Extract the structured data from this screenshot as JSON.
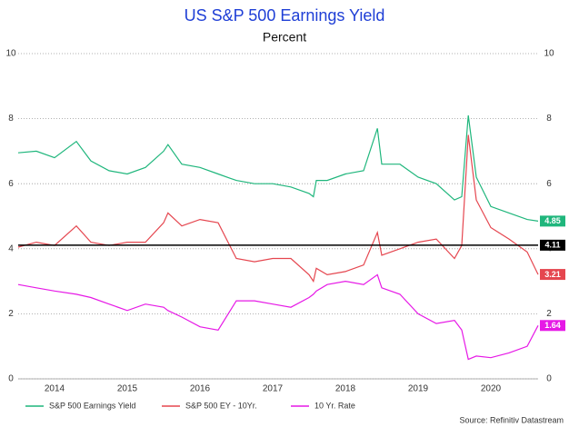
{
  "chart_data": {
    "type": "line",
    "title": "US S&P 500 Earnings Yield",
    "subtitle": "Percent",
    "source": "Source: Refinitiv Datastream",
    "x": [
      2014.0,
      2014.25,
      2014.5,
      2014.8,
      2015.0,
      2015.25,
      2015.5,
      2015.75,
      2016.0,
      2016.06,
      2016.25,
      2016.5,
      2016.75,
      2017.0,
      2017.25,
      2017.5,
      2017.75,
      2018.0,
      2018.06,
      2018.1,
      2018.25,
      2018.5,
      2018.75,
      2018.94,
      2019.0,
      2019.25,
      2019.5,
      2019.75,
      2020.0,
      2020.1,
      2020.19,
      2020.3,
      2020.5,
      2020.75,
      2021.0,
      2021.15
    ],
    "series": [
      {
        "name": "S&P 500 Earnings Yield",
        "color": "#1fb67c",
        "values": [
          6.95,
          7.0,
          6.8,
          7.3,
          6.7,
          6.4,
          6.3,
          6.5,
          7.0,
          7.2,
          6.6,
          6.5,
          6.3,
          6.1,
          6.0,
          6.0,
          5.9,
          5.7,
          5.6,
          6.1,
          6.1,
          6.3,
          6.4,
          7.7,
          6.6,
          6.6,
          6.2,
          6.0,
          5.5,
          5.6,
          8.1,
          6.2,
          5.3,
          5.1,
          4.9,
          4.85
        ]
      },
      {
        "name": "S&P 500 EY - 10Yr.",
        "color": "#e5464f",
        "values": [
          4.05,
          4.2,
          4.1,
          4.7,
          4.2,
          4.1,
          4.2,
          4.2,
          4.8,
          5.1,
          4.7,
          4.9,
          4.8,
          3.7,
          3.6,
          3.7,
          3.7,
          3.2,
          3.0,
          3.4,
          3.2,
          3.3,
          3.5,
          4.5,
          3.8,
          4.0,
          4.2,
          4.3,
          3.7,
          4.1,
          7.5,
          5.5,
          4.65,
          4.3,
          3.9,
          3.21
        ]
      },
      {
        "name": "10 Yr. Rate",
        "color": "#e619e6",
        "values": [
          2.9,
          2.8,
          2.7,
          2.6,
          2.5,
          2.3,
          2.1,
          2.3,
          2.2,
          2.1,
          1.9,
          1.6,
          1.5,
          2.4,
          2.4,
          2.3,
          2.2,
          2.5,
          2.6,
          2.7,
          2.9,
          3.0,
          2.9,
          3.2,
          2.8,
          2.6,
          2.0,
          1.7,
          1.8,
          1.5,
          0.6,
          0.7,
          0.65,
          0.8,
          1.0,
          1.64
        ]
      }
    ],
    "reference_line": {
      "value": 4.11,
      "color": "#000000"
    },
    "xlim": [
      2014.0,
      2021.15
    ],
    "xticks": [
      {
        "value": 2014.5,
        "label": "2014"
      },
      {
        "value": 2015.5,
        "label": "2015"
      },
      {
        "value": 2016.5,
        "label": "2016"
      },
      {
        "value": 2017.5,
        "label": "2017"
      },
      {
        "value": 2018.5,
        "label": "2018"
      },
      {
        "value": 2019.5,
        "label": "2019"
      },
      {
        "value": 2020.5,
        "label": "2020"
      }
    ],
    "ylim": [
      0,
      10
    ],
    "yticks": [
      0,
      2,
      4,
      6,
      8,
      10
    ],
    "y2lim": [
      0,
      10
    ],
    "y2ticks": [
      0,
      2,
      4,
      6,
      8,
      10
    ],
    "grid": true,
    "legend": "bottom"
  }
}
